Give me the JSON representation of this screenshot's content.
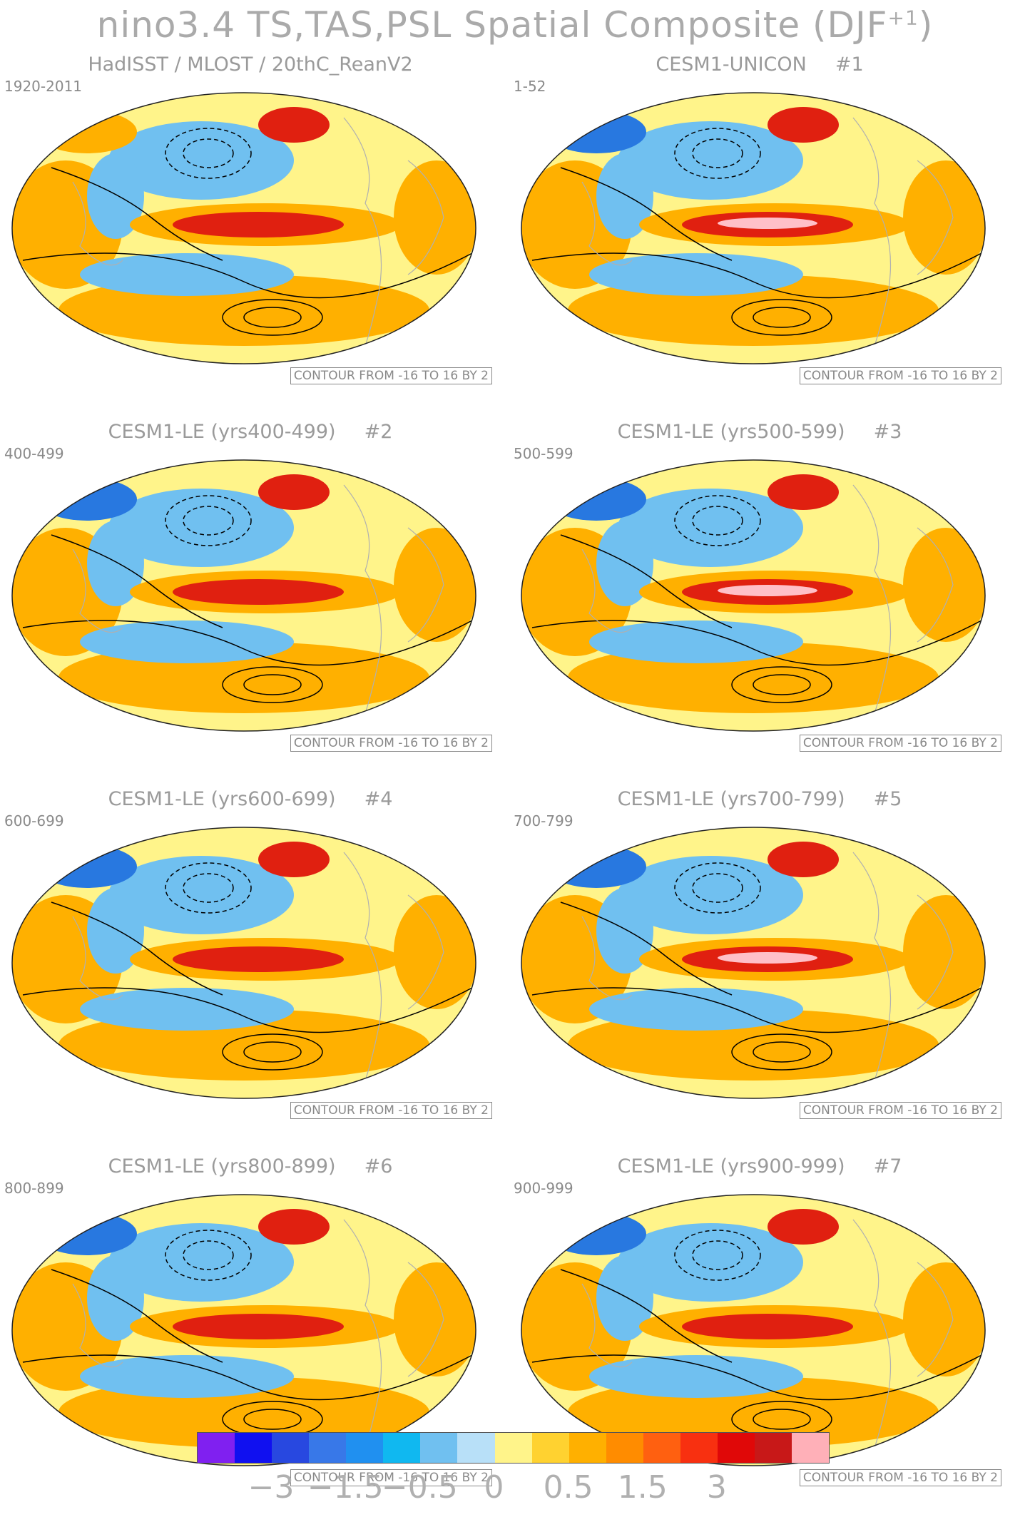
{
  "title": "nino3.4 TS,TAS,PSL Spatial Composite (DJF",
  "title_sup": "+1",
  "title_close": ")",
  "panels": [
    {
      "title": "HadISST / MLOST / 20thC_ReanV2",
      "number": "",
      "years": "1920-2011",
      "contour": "CONTOUR FROM -16 TO 16 BY 2"
    },
    {
      "title": "CESM1-UNICON",
      "number": "#1",
      "years": "1-52",
      "contour": "CONTOUR FROM -16 TO 16 BY 2"
    },
    {
      "title": "CESM1-LE (yrs400-499)",
      "number": "#2",
      "years": "400-499",
      "contour": "CONTOUR FROM -16 TO 16 BY 2"
    },
    {
      "title": "CESM1-LE (yrs500-599)",
      "number": "#3",
      "years": "500-599",
      "contour": "CONTOUR FROM -16 TO 16 BY 2"
    },
    {
      "title": "CESM1-LE (yrs600-699)",
      "number": "#4",
      "years": "600-699",
      "contour": "CONTOUR FROM -16 TO 16 BY 2"
    },
    {
      "title": "CESM1-LE (yrs700-799)",
      "number": "#5",
      "years": "700-799",
      "contour": "CONTOUR FROM -16 TO 16 BY 2"
    },
    {
      "title": "CESM1-LE (yrs800-899)",
      "number": "#6",
      "years": "800-899",
      "contour": "CONTOUR FROM -16 TO 16 BY 2"
    },
    {
      "title": "CESM1-LE (yrs900-999)",
      "number": "#7",
      "years": "900-999",
      "contour": "CONTOUR FROM -16 TO 16 BY 2"
    }
  ],
  "colorbar": {
    "colors": [
      "#8020f0",
      "#1010f0",
      "#2848e0",
      "#3878e8",
      "#2090f0",
      "#10b8f0",
      "#70c0f0",
      "#b8e0f8",
      "#fff48a",
      "#ffd230",
      "#ffb000",
      "#ff8c00",
      "#ff6010",
      "#f83010",
      "#e00808",
      "#c81818",
      "#ffb0b8"
    ],
    "labels": [
      "−3",
      "−1.5",
      "−0.5",
      "0",
      "0.5",
      "1.5",
      "3"
    ],
    "label_positions": [
      2,
      4,
      6,
      8,
      10,
      12,
      14
    ]
  },
  "map_colors": {
    "background": "#fff48a",
    "warm": "#ffb000",
    "hot": "#e02010",
    "peak": "#ffc0c8",
    "cool": "#70c0f0",
    "cold": "#2878e0",
    "coldest": "#1010e8",
    "contour": "#000000",
    "coast": "#b0b0b0"
  }
}
